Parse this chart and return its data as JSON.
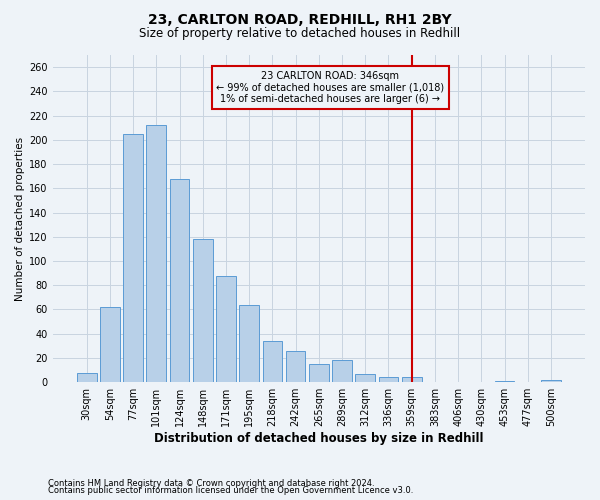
{
  "title_line1": "23, CARLTON ROAD, REDHILL, RH1 2BY",
  "title_line2": "Size of property relative to detached houses in Redhill",
  "xlabel": "Distribution of detached houses by size in Redhill",
  "ylabel": "Number of detached properties",
  "footnote1": "Contains HM Land Registry data © Crown copyright and database right 2024.",
  "footnote2": "Contains public sector information licensed under the Open Government Licence v3.0.",
  "bar_labels": [
    "30sqm",
    "54sqm",
    "77sqm",
    "101sqm",
    "124sqm",
    "148sqm",
    "171sqm",
    "195sqm",
    "218sqm",
    "242sqm",
    "265sqm",
    "289sqm",
    "312sqm",
    "336sqm",
    "359sqm",
    "383sqm",
    "406sqm",
    "430sqm",
    "453sqm",
    "477sqm",
    "500sqm"
  ],
  "bar_heights": [
    8,
    62,
    205,
    212,
    168,
    118,
    88,
    64,
    34,
    26,
    15,
    18,
    7,
    4,
    4,
    0,
    0,
    0,
    1,
    0,
    2
  ],
  "bar_color": "#b8d0e8",
  "bar_edge_color": "#5b9bd5",
  "grid_color": "#c8d4e0",
  "background_color": "#eef3f8",
  "vline_x_index": 14.0,
  "vline_color": "#cc0000",
  "annotation_text": "23 CARLTON ROAD: 346sqm\n← 99% of detached houses are smaller (1,018)\n1% of semi-detached houses are larger (6) →",
  "annotation_box_color": "#cc0000",
  "ylim": [
    0,
    270
  ],
  "yticks": [
    0,
    20,
    40,
    60,
    80,
    100,
    120,
    140,
    160,
    180,
    200,
    220,
    240,
    260
  ],
  "title1_fontsize": 10,
  "title2_fontsize": 8.5,
  "ylabel_fontsize": 7.5,
  "xlabel_fontsize": 8.5,
  "tick_fontsize": 7,
  "annot_fontsize": 7,
  "footnote_fontsize": 6
}
